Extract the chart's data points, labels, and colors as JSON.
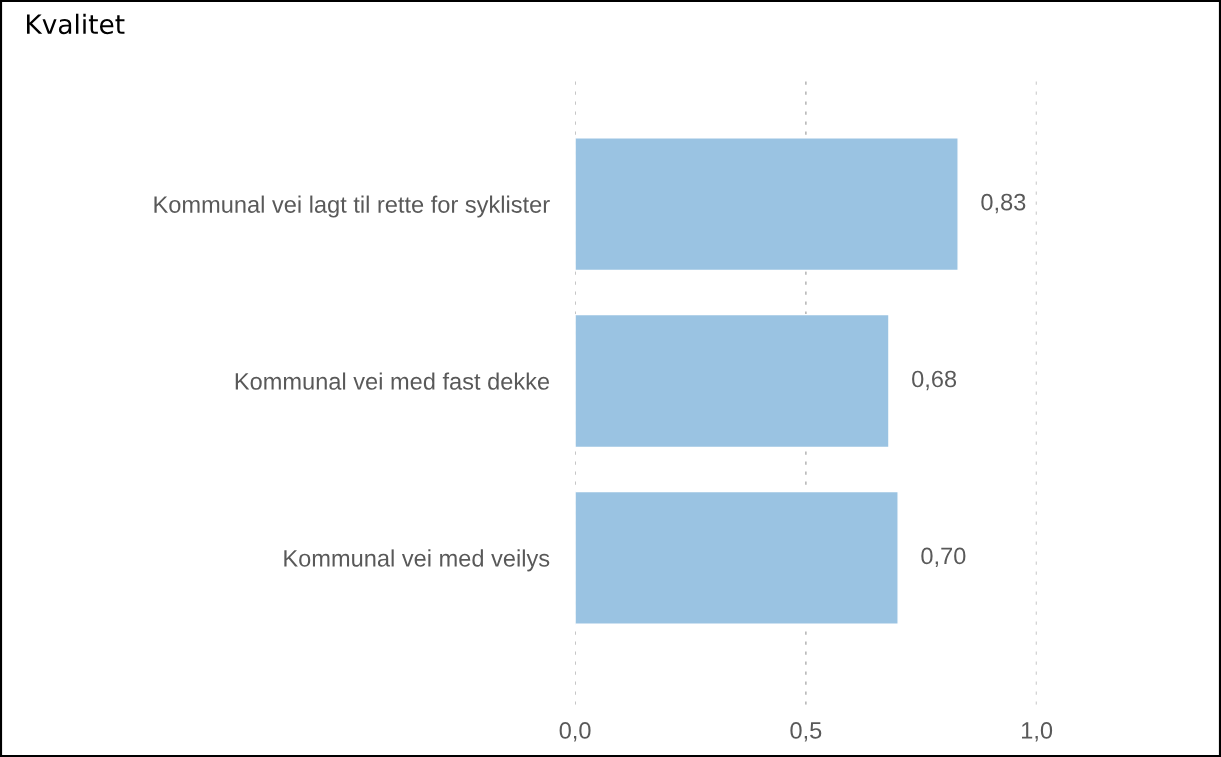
{
  "chart_data": {
    "type": "bar",
    "orientation": "horizontal",
    "title": "Kvalitet",
    "categories": [
      "Kommunal vei lagt til rette for syklister",
      "Kommunal vei med fast dekke",
      "Kommunal vei med veilys"
    ],
    "values": [
      0.83,
      0.68,
      0.7
    ],
    "color": "#9ac3e2",
    "value_labels": [
      "0,83",
      "0,68",
      "0,70"
    ],
    "xlim": [
      0,
      1.0
    ],
    "xticks": [
      {
        "value": 0,
        "label": "0,0"
      },
      {
        "value": 0.5,
        "label": "0,5"
      },
      {
        "value": 1.0,
        "label": "1,0"
      }
    ],
    "grid": "x",
    "legend": false
  }
}
